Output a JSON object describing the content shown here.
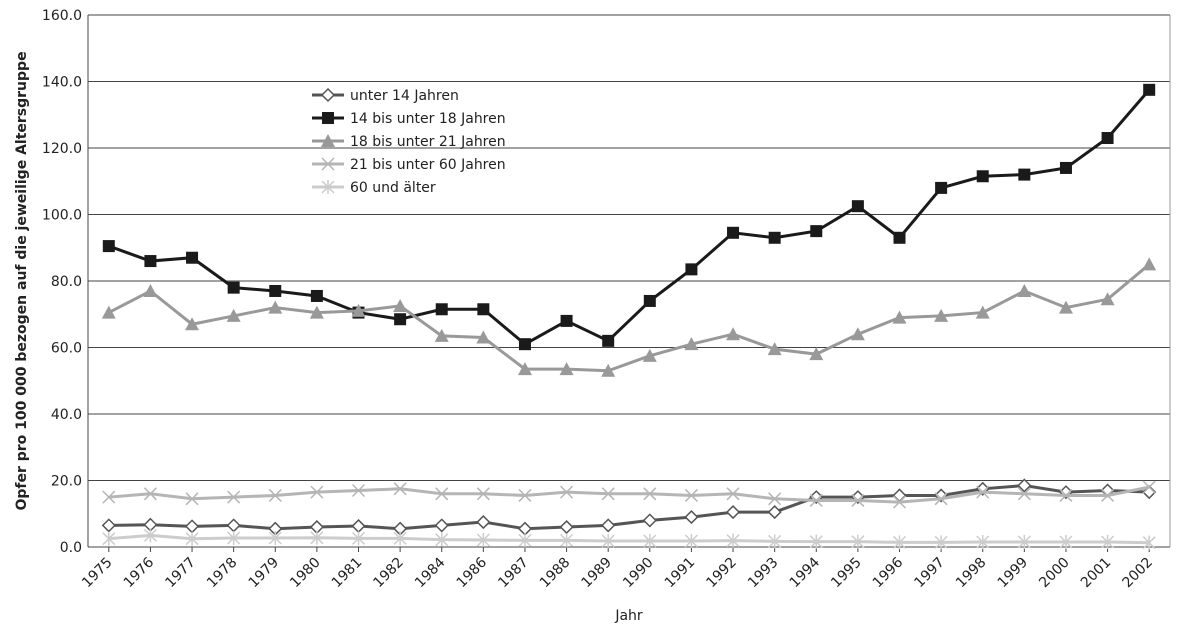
{
  "chart_data": {
    "type": "line",
    "y_label": "Opfer pro 100 000 bezogen auf die jeweilige Altersgruppe",
    "x_label": "Jahr",
    "categories": [
      "1975",
      "1976",
      "1977",
      "1978",
      "1979",
      "1980",
      "1981",
      "1982",
      "1984",
      "1986",
      "1987",
      "1988",
      "1989",
      "1990",
      "1991",
      "1992",
      "1993",
      "1994",
      "1995",
      "1996",
      "1997",
      "1998",
      "1999",
      "2000",
      "2001",
      "2002"
    ],
    "series": [
      {
        "name": "unter 14 Jahren",
        "color": "#555555",
        "marker": "diamond",
        "values": [
          6.5,
          6.7,
          6.2,
          6.5,
          5.5,
          6,
          6.3,
          5.5,
          6.5,
          7.5,
          5.5,
          6,
          6.5,
          8,
          9,
          10.5,
          10.5,
          15,
          15,
          15.5,
          15.5,
          17.5,
          18.5,
          16.5,
          17,
          16.5
        ]
      },
      {
        "name": "14 bis unter 18 Jahren",
        "color": "#1a1a1a",
        "marker": "square",
        "values": [
          90.5,
          86,
          87,
          78,
          77,
          75.5,
          70.5,
          68.5,
          71.5,
          71.5,
          61,
          68,
          62,
          74,
          83.5,
          94.5,
          93,
          95,
          102.5,
          93,
          108,
          111.5,
          112,
          114,
          123,
          137.5
        ]
      },
      {
        "name": "18 bis unter 21 Jahren",
        "color": "#999999",
        "marker": "triangle",
        "values": [
          70.5,
          77,
          67,
          69.5,
          72,
          70.5,
          71,
          72.5,
          63.5,
          63,
          53.5,
          53.5,
          53,
          57.5,
          61,
          64,
          59.5,
          58,
          64,
          69,
          69.5,
          70.5,
          77,
          72,
          74.5,
          85
        ]
      },
      {
        "name": "21 bis unter 60 Jahren",
        "color": "#b5b5b5",
        "marker": "x",
        "values": [
          15,
          16,
          14.5,
          15,
          15.5,
          16.5,
          17,
          17.5,
          16,
          16,
          15.5,
          16.5,
          16,
          16,
          15.5,
          16,
          14.5,
          14,
          14,
          13.5,
          14.5,
          16.5,
          16,
          15.5,
          15.5,
          18
        ]
      },
      {
        "name": "60 und älter",
        "color": "#cccccc",
        "marker": "star",
        "values": [
          2.5,
          3.5,
          2.5,
          2.7,
          2.7,
          2.8,
          2.6,
          2.6,
          2.2,
          2.1,
          2,
          2,
          1.8,
          1.8,
          1.8,
          1.9,
          1.7,
          1.6,
          1.6,
          1.4,
          1.4,
          1.5,
          1.5,
          1.5,
          1.5,
          1.3
        ]
      }
    ],
    "ylim": [
      0,
      160
    ],
    "yticks": [
      {
        "value": 0,
        "label": "0.0"
      },
      {
        "value": 20,
        "label": "20.0"
      },
      {
        "value": 40,
        "label": "40.0"
      },
      {
        "value": 60,
        "label": "60.0"
      },
      {
        "value": 80,
        "label": "80.0"
      },
      {
        "value": 100,
        "label": "100.0"
      },
      {
        "value": 120,
        "label": "120.0"
      },
      {
        "value": 140,
        "label": "140.0"
      },
      {
        "value": 160,
        "label": "160.0"
      }
    ],
    "grid": true,
    "legend": "upper left"
  }
}
